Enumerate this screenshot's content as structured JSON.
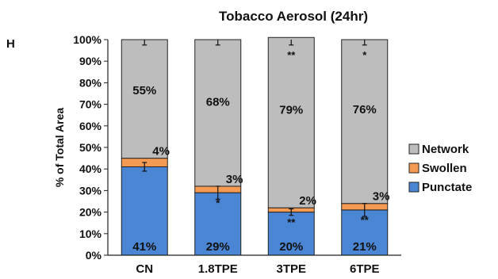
{
  "panel_letter": "H",
  "chart_data": {
    "type": "bar",
    "stacked": true,
    "title": "Tobacco Aerosol (24hr)",
    "xlabel": "",
    "ylabel": "% of Total Area",
    "ylim": [
      0,
      100
    ],
    "yticks": [
      "0%",
      "10%",
      "20%",
      "30%",
      "40%",
      "50%",
      "60%",
      "70%",
      "80%",
      "90%",
      "100%"
    ],
    "categories": [
      "CN",
      "1.8TPE",
      "3TPE",
      "6TPE"
    ],
    "series": [
      {
        "name": "Punctate",
        "color": "#4a86d4",
        "values": [
          41,
          29,
          20,
          21
        ],
        "labels": [
          "41%",
          "29%",
          "20%",
          "21%"
        ],
        "error": [
          2,
          3,
          1.5,
          3
        ],
        "sig": [
          "",
          "*",
          "**",
          "**"
        ]
      },
      {
        "name": "Swollen",
        "color": "#f59a52",
        "values": [
          4,
          3,
          2,
          3
        ],
        "labels": [
          "4%",
          "3%",
          "2%",
          "3%"
        ]
      },
      {
        "name": "Network",
        "color": "#bdbdbd",
        "values": [
          55,
          68,
          79,
          76
        ],
        "labels": [
          "55%",
          "68%",
          "79%",
          "76%"
        ],
        "sig": [
          "",
          "",
          "**",
          "*"
        ]
      }
    ],
    "legend": {
      "position": "right",
      "order": [
        "Network",
        "Swollen",
        "Punctate"
      ]
    },
    "grid": false
  }
}
